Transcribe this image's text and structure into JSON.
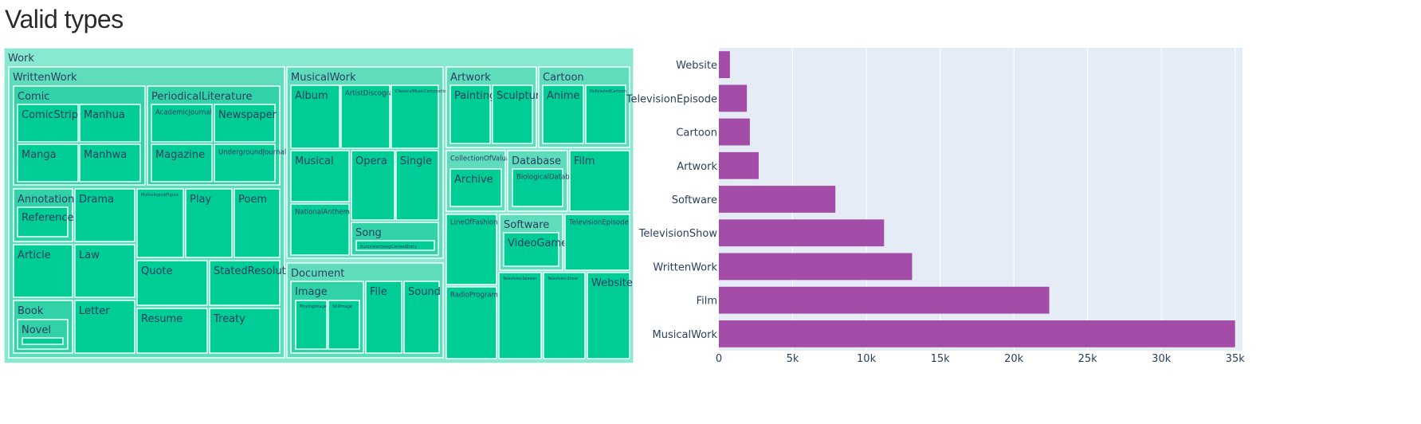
{
  "title": "Valid types",
  "colors": {
    "treemap_root": "#88e8d0",
    "treemap_level1": "#5fdcbc",
    "treemap_level2": "#32d2a8",
    "treemap_leaf": "#00cc96",
    "treemap_border": "#ffffff",
    "treemap_text": "#2a3f5f",
    "bar": "#a44da8",
    "plot_bg": "#e5ecf6",
    "grid": "#ffffff",
    "tick_text": "#2a3f5f"
  },
  "chart_data": [
    {
      "type": "treemap",
      "root": {
        "name": "Work",
        "children": [
          {
            "name": "WrittenWork",
            "children": [
              {
                "name": "Comic",
                "children": [
                  {
                    "name": "ComicStrip"
                  },
                  {
                    "name": "Manhua"
                  },
                  {
                    "name": "Manga"
                  },
                  {
                    "name": "Manhwa"
                  }
                ]
              },
              {
                "name": "PeriodicalLiterature",
                "children": [
                  {
                    "name": "AcademicJournal"
                  },
                  {
                    "name": "Newspaper"
                  },
                  {
                    "name": "Magazine"
                  },
                  {
                    "name": "UndergroundJournal"
                  }
                ]
              },
              {
                "name": "Annotation",
                "children": [
                  {
                    "name": "Reference"
                  }
                ]
              },
              {
                "name": "Drama"
              },
              {
                "name": "MythologicalFigure"
              },
              {
                "name": "Play"
              },
              {
                "name": "Poem"
              },
              {
                "name": "Article"
              },
              {
                "name": "Law"
              },
              {
                "name": "Quote"
              },
              {
                "name": "StatedResolution"
              },
              {
                "name": "Book",
                "children": [
                  {
                    "name": "Novel",
                    "children": [
                      {
                        "name": ""
                      }
                    ]
                  }
                ]
              },
              {
                "name": "Letter"
              },
              {
                "name": "Resume"
              },
              {
                "name": "Treaty"
              }
            ]
          },
          {
            "name": "MusicalWork",
            "children": [
              {
                "name": "Album"
              },
              {
                "name": "ArtistDiscography"
              },
              {
                "name": "ClassicalMusicComposition"
              },
              {
                "name": "Musical"
              },
              {
                "name": "Opera"
              },
              {
                "name": "Single"
              },
              {
                "name": "NationalAnthem"
              },
              {
                "name": "Song",
                "children": [
                  {
                    "name": "EurovisionSongContestEntry"
                  }
                ]
              }
            ]
          },
          {
            "name": "Document",
            "children": [
              {
                "name": "Image",
                "children": [
                  {
                    "name": "MovingImage"
                  },
                  {
                    "name": "StillImage"
                  }
                ]
              },
              {
                "name": "File"
              },
              {
                "name": "Sound"
              }
            ]
          },
          {
            "name": "Artwork",
            "children": [
              {
                "name": "Painting"
              },
              {
                "name": "Sculpture"
              }
            ]
          },
          {
            "name": "Cartoon",
            "children": [
              {
                "name": "Anime"
              },
              {
                "name": "HollywoodCartoon"
              }
            ]
          },
          {
            "name": "CollectionOfValuables",
            "children": [
              {
                "name": "Archive"
              }
            ]
          },
          {
            "name": "Database",
            "children": [
              {
                "name": "BiologicalDatabase"
              }
            ]
          },
          {
            "name": "Film"
          },
          {
            "name": "LineOfFashion"
          },
          {
            "name": "Software",
            "children": [
              {
                "name": "VideoGame"
              }
            ]
          },
          {
            "name": "TelevisionEpisode"
          },
          {
            "name": "RadioProgram"
          },
          {
            "name": "TelevisionSeason"
          },
          {
            "name": "TelevisionShow"
          },
          {
            "name": "Website"
          }
        ]
      }
    },
    {
      "type": "bar",
      "orientation": "horizontal",
      "categories": [
        "Website",
        "TelevisionEpisode",
        "Cartoon",
        "Artwork",
        "Software",
        "TelevisionShow",
        "WrittenWork",
        "Film",
        "MusicalWork"
      ],
      "values": [
        750,
        1900,
        2100,
        2700,
        7900,
        11200,
        13100,
        22400,
        35000
      ],
      "xlim": [
        0,
        35500
      ],
      "xticks": [
        0,
        5000,
        10000,
        15000,
        20000,
        25000,
        30000,
        35000
      ],
      "xtick_labels": [
        "0",
        "5k",
        "10k",
        "15k",
        "20k",
        "25k",
        "30k",
        "35k"
      ],
      "grid": true,
      "legend": false
    }
  ]
}
